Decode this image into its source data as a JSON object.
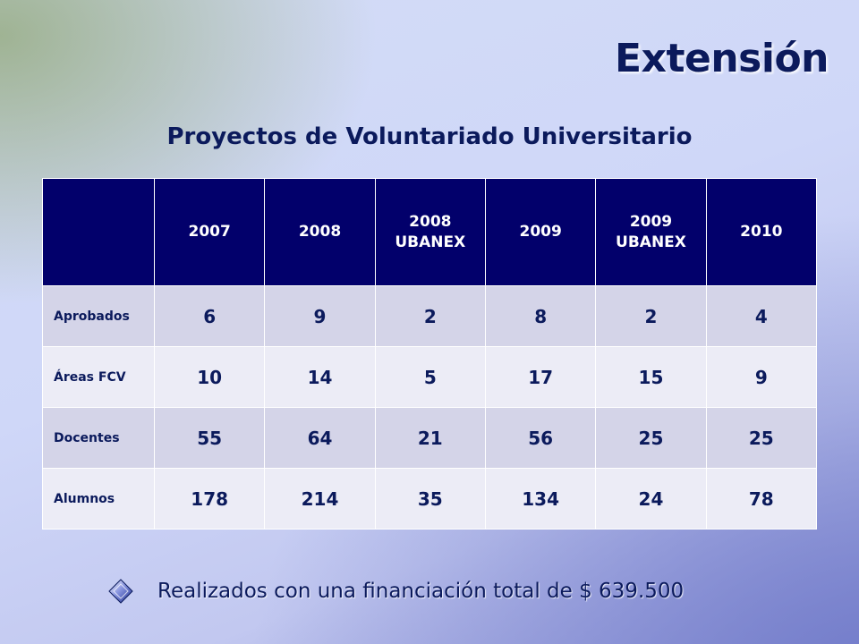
{
  "title": "Extensión",
  "subtitle": "Proyectos  de Voluntariado Universitario",
  "table": {
    "corner": "",
    "columns": [
      {
        "line1": "2007",
        "line2": ""
      },
      {
        "line1": "2008",
        "line2": ""
      },
      {
        "line1": "2008",
        "line2": "UBANEX"
      },
      {
        "line1": "2009",
        "line2": ""
      },
      {
        "line1": "2009",
        "line2": "UBANEX"
      },
      {
        "line1": "2010",
        "line2": ""
      }
    ],
    "rows": [
      {
        "label": "Aprobados",
        "values": [
          "6",
          "9",
          "2",
          "8",
          "2",
          "4"
        ]
      },
      {
        "label": "Áreas FCV",
        "values": [
          "10",
          "14",
          "5",
          "17",
          "15",
          "9"
        ]
      },
      {
        "label": "Docentes",
        "values": [
          "55",
          "64",
          "21",
          "56",
          "25",
          "25"
        ]
      },
      {
        "label": "Alumnos",
        "values": [
          "178",
          "214",
          "35",
          "134",
          "24",
          "78"
        ]
      }
    ]
  },
  "note": {
    "text": "Realizados con una financiación total de  $ 639.500",
    "icon": "diamond-bullet-icon"
  },
  "colors": {
    "header_bg": "#02006b",
    "text": "#0b1a5c",
    "row_shade_a": "#d4d4e8",
    "row_shade_b": "#ececf6"
  }
}
